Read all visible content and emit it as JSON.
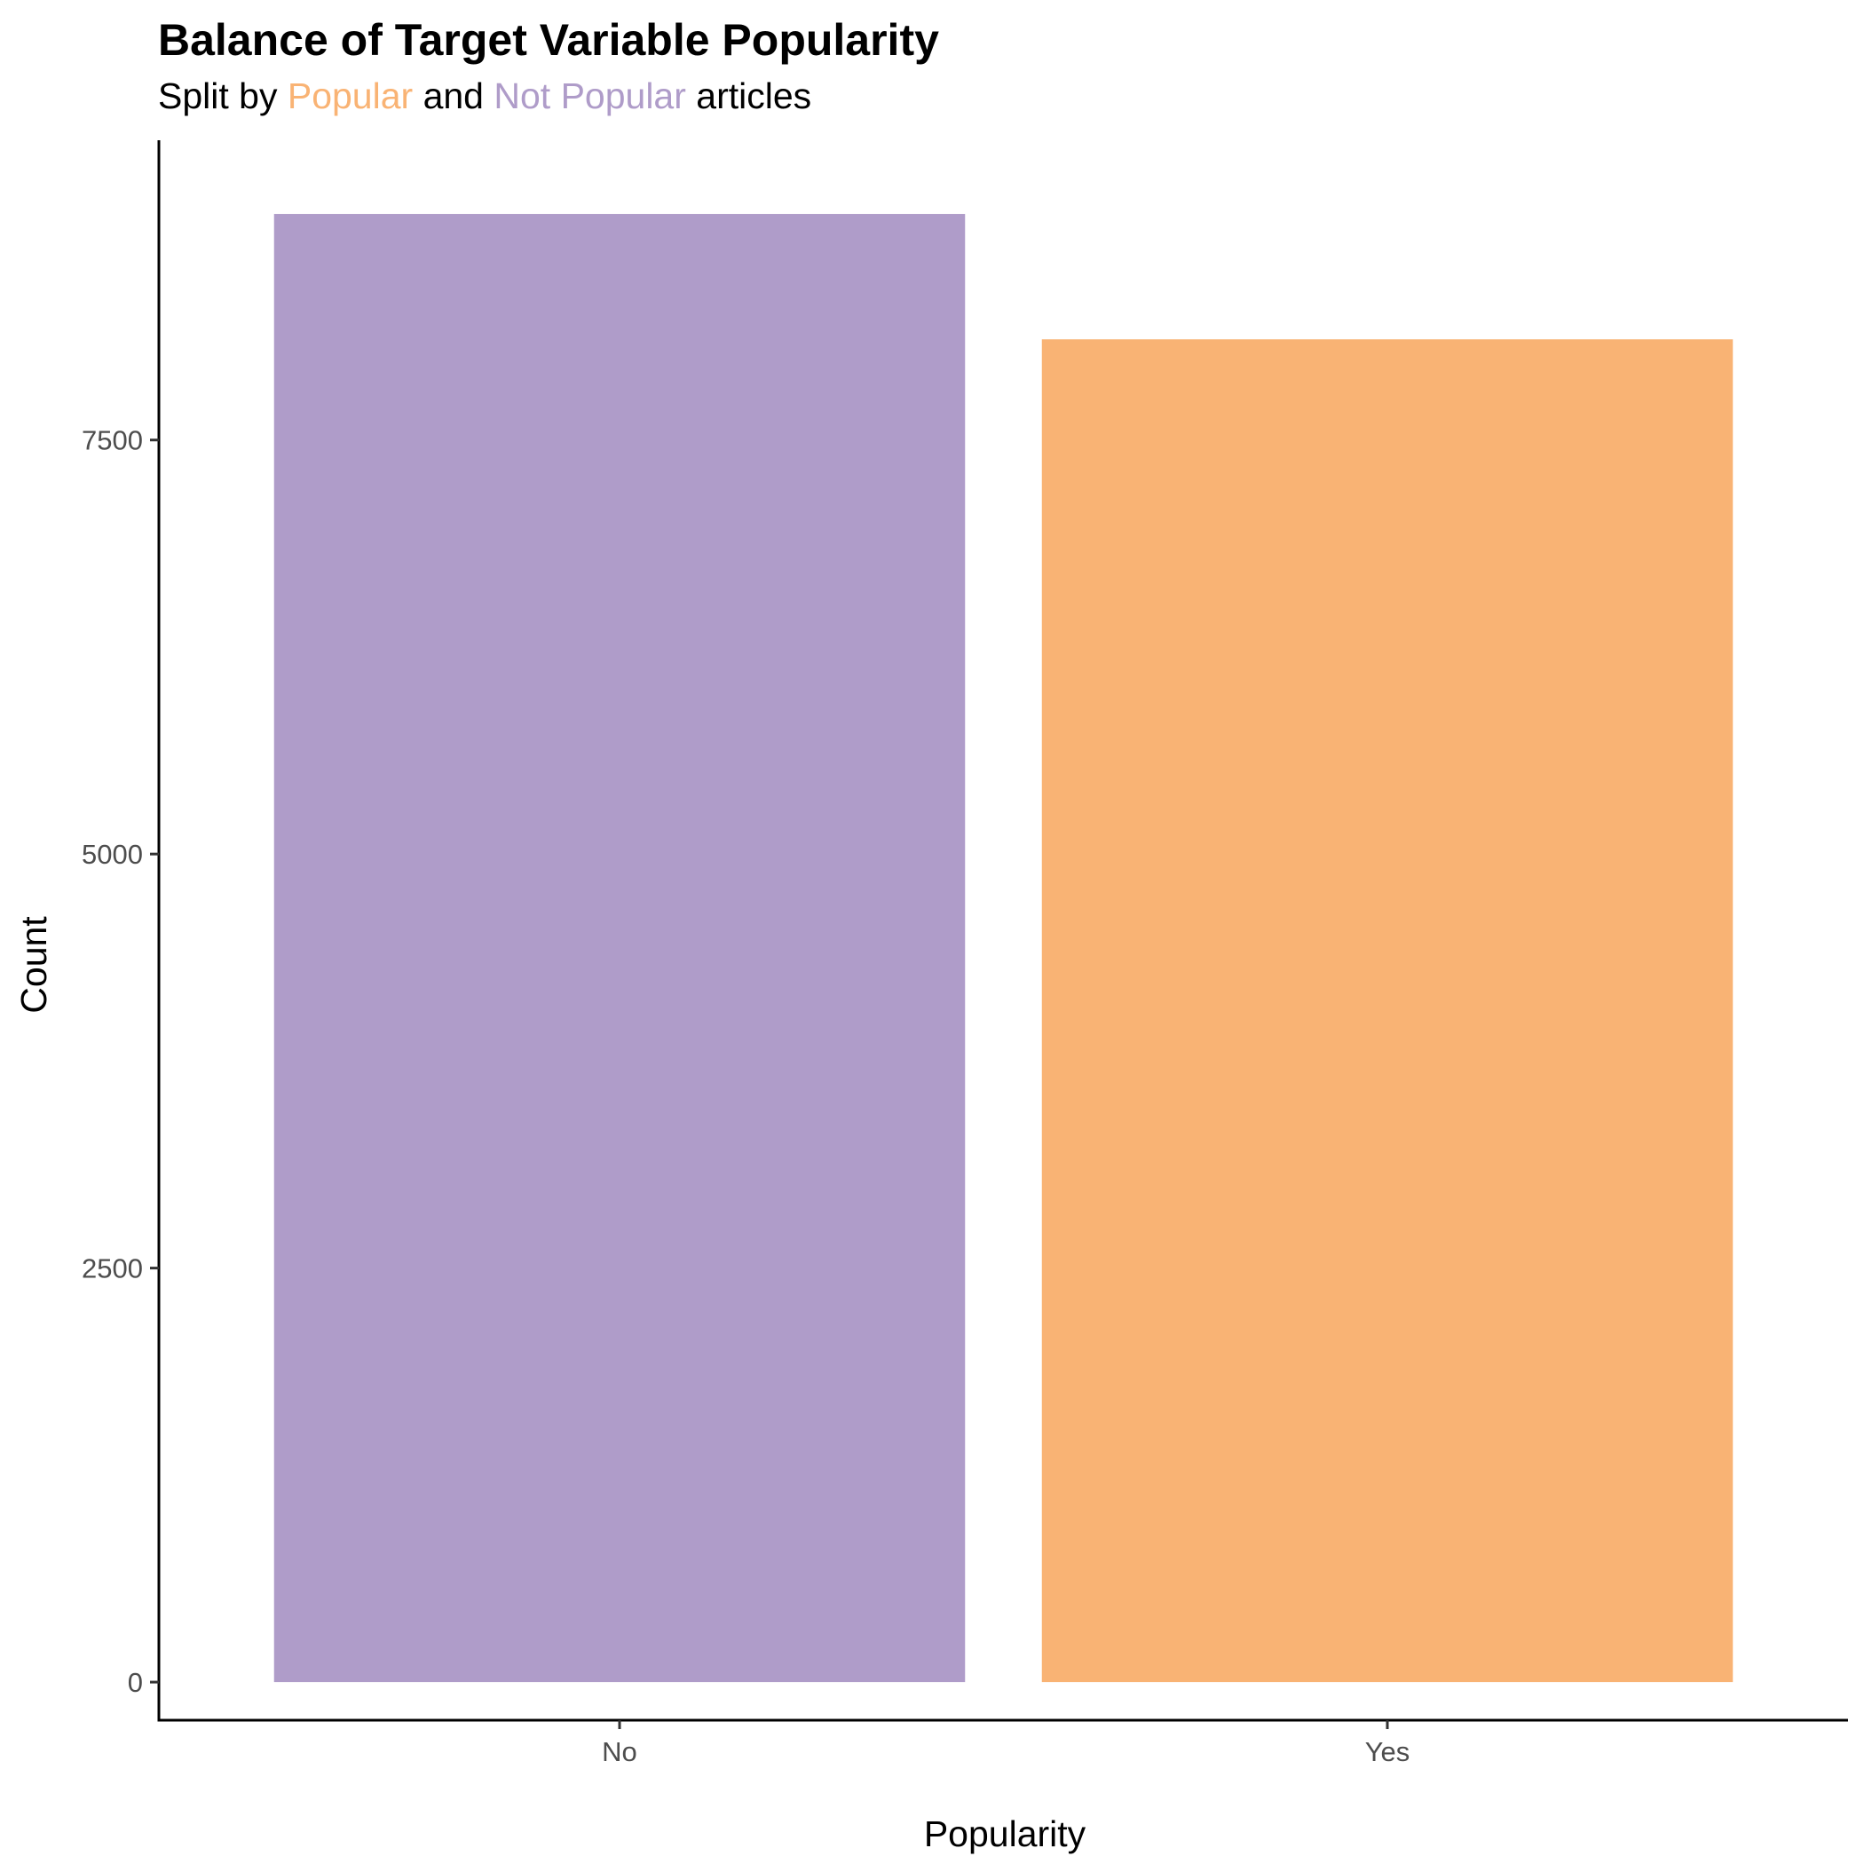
{
  "chart_data": {
    "type": "bar",
    "title": "Balance of Target Variable Popularity",
    "subtitle": {
      "parts": [
        {
          "text": "Split by ",
          "color": "#000000"
        },
        {
          "text": "Popular",
          "color": "#F9B374"
        },
        {
          "text": " and ",
          "color": "#000000"
        },
        {
          "text": "Not Popular",
          "color": "#AF9CC9"
        },
        {
          "text": " articles",
          "color": "#000000"
        }
      ]
    },
    "xlabel": "Popularity",
    "ylabel": "Count",
    "categories": [
      "No",
      "Yes"
    ],
    "values": [
      8865,
      8108
    ],
    "bar_colors": [
      "#AF9CC9",
      "#F9B374"
    ],
    "ylim": [
      -230,
      9310
    ],
    "yticks": [
      0,
      2500,
      5000,
      7500
    ],
    "ytick_labels": [
      "0",
      "2500",
      "5000",
      "7500"
    ],
    "grid": false,
    "legend": "none"
  }
}
